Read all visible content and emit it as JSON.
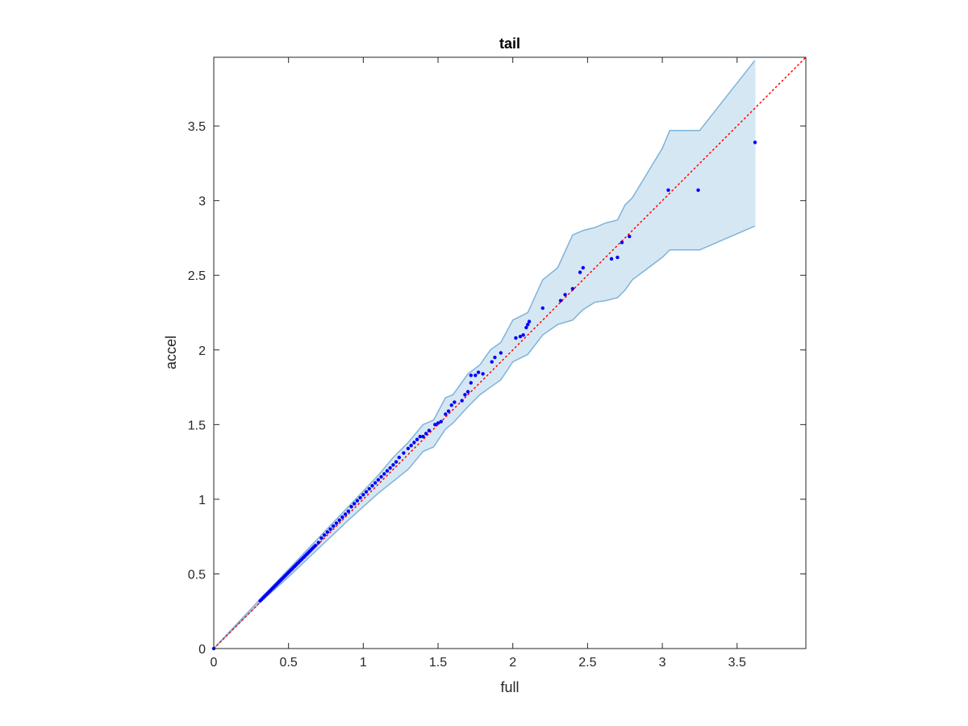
{
  "chart_data": {
    "type": "scatter",
    "title": "tail",
    "xlabel": "full",
    "ylabel": "accel",
    "xlim": [
      0,
      3.96
    ],
    "ylim": [
      0,
      3.96
    ],
    "xticks": [
      0,
      0.5,
      1,
      1.5,
      2,
      2.5,
      3,
      3.5
    ],
    "yticks": [
      0,
      0.5,
      1,
      1.5,
      2,
      2.5,
      3,
      3.5
    ],
    "xtick_labels": [
      "0",
      "0.5",
      "1",
      "1.5",
      "2",
      "2.5",
      "3",
      "3.5"
    ],
    "ytick_labels": [
      "0",
      "0.5",
      "1",
      "1.5",
      "2",
      "2.5",
      "3",
      "3.5"
    ],
    "grid": false,
    "colors": {
      "points": "#0000ff",
      "reference_line": "#ff0000",
      "band_fill": "#d6e7f4",
      "band_edge": "#7fb3d8",
      "axes": "#262626"
    },
    "reference_line": {
      "style": "dotted",
      "x": [
        0,
        3.96
      ],
      "y": [
        0,
        3.96
      ]
    },
    "band": {
      "x": [
        0,
        0.3,
        0.5,
        0.7,
        0.9,
        1.1,
        1.2,
        1.3,
        1.4,
        1.47,
        1.55,
        1.6,
        1.7,
        1.78,
        1.85,
        1.92,
        2.0,
        2.1,
        2.2,
        2.3,
        2.4,
        2.47,
        2.55,
        2.62,
        2.7,
        2.75,
        2.8,
        3.0,
        3.05,
        3.25,
        3.62
      ],
      "upper": [
        0,
        0.32,
        0.53,
        0.74,
        0.95,
        1.16,
        1.28,
        1.38,
        1.5,
        1.53,
        1.68,
        1.7,
        1.84,
        1.9,
        2.0,
        2.05,
        2.2,
        2.25,
        2.47,
        2.55,
        2.77,
        2.8,
        2.82,
        2.85,
        2.87,
        2.97,
        3.02,
        3.35,
        3.47,
        3.47,
        3.94
      ],
      "lower": [
        0,
        0.3,
        0.48,
        0.67,
        0.86,
        1.04,
        1.12,
        1.2,
        1.32,
        1.35,
        1.47,
        1.51,
        1.62,
        1.7,
        1.75,
        1.8,
        1.92,
        1.97,
        2.1,
        2.17,
        2.2,
        2.27,
        2.32,
        2.33,
        2.35,
        2.4,
        2.47,
        2.62,
        2.67,
        2.67,
        2.83
      ]
    },
    "series": [
      {
        "x": [
          0,
          0.31,
          0.32,
          0.33,
          0.34,
          0.35,
          0.36,
          0.37,
          0.38,
          0.39,
          0.4,
          0.41,
          0.42,
          0.43,
          0.44,
          0.45,
          0.46,
          0.47,
          0.48,
          0.49,
          0.5,
          0.51,
          0.52,
          0.53,
          0.54,
          0.55,
          0.56,
          0.57,
          0.58,
          0.59,
          0.6,
          0.61,
          0.62,
          0.63,
          0.64,
          0.65,
          0.66,
          0.67,
          0.68,
          0.7,
          0.72,
          0.74,
          0.76,
          0.78,
          0.8,
          0.82,
          0.84,
          0.86,
          0.88,
          0.9,
          0.92,
          0.94,
          0.96,
          0.98,
          1.0,
          1.02,
          1.04,
          1.06,
          1.08,
          1.1,
          1.12,
          1.14,
          1.16,
          1.18,
          1.2,
          1.22,
          1.24,
          1.27,
          1.3,
          1.32,
          1.34,
          1.36,
          1.38,
          1.4,
          1.42,
          1.44,
          1.48,
          1.5,
          1.52,
          1.55,
          1.57,
          1.59,
          1.61,
          1.66,
          1.68,
          1.7,
          1.72,
          1.72,
          1.75,
          1.77,
          1.8,
          1.86,
          1.88,
          1.92,
          2.02,
          2.05,
          2.07,
          2.09,
          2.1,
          2.11,
          2.2,
          2.32,
          2.35,
          2.4,
          2.45,
          2.47,
          2.66,
          2.7,
          2.73,
          2.78,
          3.04,
          3.24,
          3.62
        ],
        "y": [
          0,
          0.32,
          0.33,
          0.34,
          0.35,
          0.36,
          0.37,
          0.38,
          0.39,
          0.4,
          0.41,
          0.42,
          0.43,
          0.44,
          0.45,
          0.46,
          0.47,
          0.48,
          0.49,
          0.5,
          0.51,
          0.52,
          0.53,
          0.54,
          0.55,
          0.56,
          0.57,
          0.58,
          0.59,
          0.6,
          0.61,
          0.62,
          0.63,
          0.64,
          0.65,
          0.66,
          0.67,
          0.68,
          0.69,
          0.71,
          0.74,
          0.76,
          0.78,
          0.8,
          0.82,
          0.84,
          0.86,
          0.88,
          0.9,
          0.92,
          0.95,
          0.97,
          0.99,
          1.01,
          1.03,
          1.05,
          1.07,
          1.09,
          1.11,
          1.13,
          1.15,
          1.17,
          1.19,
          1.21,
          1.23,
          1.25,
          1.28,
          1.31,
          1.34,
          1.36,
          1.38,
          1.4,
          1.42,
          1.42,
          1.44,
          1.46,
          1.5,
          1.51,
          1.52,
          1.57,
          1.59,
          1.63,
          1.65,
          1.66,
          1.7,
          1.72,
          1.78,
          1.83,
          1.83,
          1.85,
          1.84,
          1.92,
          1.95,
          1.98,
          2.08,
          2.09,
          2.1,
          2.15,
          2.17,
          2.19,
          2.28,
          2.33,
          2.37,
          2.41,
          2.52,
          2.55,
          2.61,
          2.62,
          2.72,
          2.76,
          3.07,
          3.07,
          3.39
        ]
      }
    ]
  }
}
